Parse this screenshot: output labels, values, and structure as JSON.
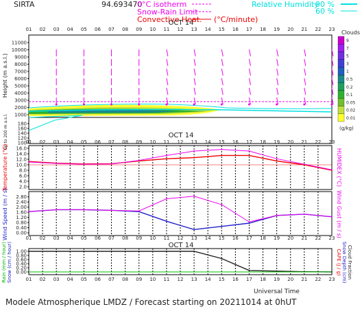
{
  "header": {
    "station": "SIRTA",
    "coords": "94.693470",
    "legend": {
      "isotherm": "0°C isotherm",
      "snow_rain": "Snow-Rain Limit",
      "convective": "Convective Heat.",
      "convective_unit": "(°C/minute)",
      "rh": "Relative Humidity",
      "rh90": "90 %",
      "rh60": "60 %"
    }
  },
  "colors": {
    "magenta": "#ee00ee",
    "cyan": "#00e0e0",
    "red": "#ee0000",
    "blue": "#2020cc"
  },
  "date_label": "OCT 14",
  "hours": [
    "01",
    "02",
    "03",
    "04",
    "05",
    "06",
    "07",
    "08",
    "09",
    "10",
    "11",
    "12",
    "13",
    "14",
    "15",
    "16",
    "17",
    "18",
    "19",
    "20",
    "21",
    "22",
    "23"
  ],
  "footer": {
    "title": "Modele Atmospherique LMDZ / Forecast starting on 20211014 at 0hUT",
    "xlabel": "Universal Time"
  },
  "chart_data": [
    {
      "type": "heatmap",
      "ylabel": "Height (m a.s.l.)",
      "ylabel_low": "Up to 200 m a.s.l.",
      "yticks_upper": [
        "11000",
        "10000",
        "9000",
        "8000",
        "7000",
        "6000",
        "5000",
        "4000",
        "3000",
        "2000",
        "1000"
      ],
      "yticks_lower": [
        "180",
        "160",
        "140",
        "120",
        "100"
      ],
      "colorbar": {
        "title": "Clouds",
        "unit": "(g/kg)",
        "levels": [
          "9",
          "7",
          "5",
          "3",
          "1",
          "0.5",
          "0.2",
          "0.1",
          "0.05",
          "0.02",
          "0.01"
        ],
        "colors": [
          "#cc00cc",
          "#a020f0",
          "#7030e0",
          "#4040d0",
          "#2060c0",
          "#1a8a8a",
          "#1fa060",
          "#30b030",
          "#70c030",
          "#c0e040",
          "#ffff30"
        ]
      },
      "wind_arrows_hours": [
        "03",
        "05",
        "07",
        "09",
        "11",
        "13",
        "15",
        "17",
        "19",
        "21",
        "23"
      ],
      "isotherm_m": 2500
    },
    {
      "type": "line",
      "ylabel": "Temperature (°C)",
      "ylabel_right": "HUMIDEX (°C)",
      "yticks": [
        "16.0",
        "14.0",
        "12.0",
        "10.0",
        "8.0",
        "6.0",
        "4.0",
        "2.0"
      ],
      "ylim": [
        2,
        16
      ],
      "x": [
        1,
        3,
        5,
        7,
        9,
        11,
        13,
        15,
        17,
        19,
        21,
        23
      ],
      "series": [
        {
          "values": [
            11.2,
            10.6,
            10.3,
            10.4,
            11.4,
            12.2,
            12.6,
            13.4,
            13.4,
            11.4,
            10.0,
            8.0
          ]
        },
        {
          "values": [
            11.0,
            10.5,
            10.2,
            10.3,
            11.6,
            13.4,
            15.0,
            15.6,
            15.0,
            12.2,
            10.2,
            8.2
          ]
        }
      ]
    },
    {
      "type": "line",
      "ylabel": "Wind Speed (m / s)",
      "ylabel_right": "Wind Gust (m / s)",
      "yticks": [
        "2.80",
        "2.40",
        "2.00",
        "1.60",
        "1.20",
        "0.80",
        "0.40",
        "0.00"
      ],
      "ylim": [
        0,
        3.0
      ],
      "x": [
        1,
        3,
        5,
        7,
        9,
        11,
        13,
        15,
        17,
        19,
        21,
        23
      ],
      "series": [
        {
          "values": [
            1.65,
            1.8,
            1.8,
            1.75,
            1.65,
            0.9,
            0.25,
            0.5,
            0.75,
            1.35,
            1.45,
            1.25
          ]
        },
        {
          "values": [
            1.65,
            1.8,
            1.8,
            1.75,
            1.7,
            2.65,
            2.85,
            2.2,
            0.85,
            1.35,
            1.45,
            1.25
          ]
        }
      ]
    },
    {
      "type": "line",
      "ylabel_rain": "Rain (mm / hour)",
      "ylabel_snow": "Snow (cm / hour)",
      "ylabel_right1": "CAPE (J / g)",
      "ylabel_right2": "Snow Depth (cm)",
      "ylabel_right3": "Cloud Fraction",
      "yticks": [
        "1.00",
        "0.80",
        "0.60",
        "0.40",
        "0.20",
        "0.00"
      ],
      "ylim": [
        0,
        1.0
      ],
      "x": [
        1,
        3,
        5,
        7,
        9,
        11,
        13,
        15,
        17,
        19,
        21,
        23
      ],
      "series": [
        {
          "values": [
            1.0,
            1.0,
            1.0,
            1.0,
            1.0,
            1.0,
            1.0,
            0.65,
            0.07,
            0.04,
            0.01,
            0.0
          ]
        }
      ]
    }
  ]
}
